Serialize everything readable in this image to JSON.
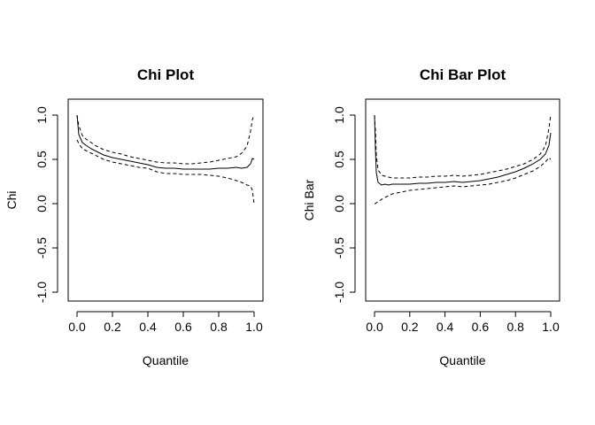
{
  "chart_data": [
    {
      "type": "line",
      "title": "Chi Plot",
      "xlabel": "Quantile",
      "ylabel": "Chi",
      "xlim": [
        0,
        1
      ],
      "ylim": [
        -1,
        1
      ],
      "xticks": [
        "0.0",
        "0.2",
        "0.4",
        "0.6",
        "0.8",
        "1.0"
      ],
      "yticks": [
        "-1.0",
        "-0.5",
        "0.0",
        "0.5",
        "1.0"
      ],
      "grid": false,
      "series": [
        {
          "style": "solid",
          "x": [
            0.0,
            0.01,
            0.03,
            0.05,
            0.08,
            0.1,
            0.15,
            0.2,
            0.25,
            0.3,
            0.35,
            0.4,
            0.45,
            0.5,
            0.55,
            0.6,
            0.65,
            0.7,
            0.75,
            0.8,
            0.85,
            0.9,
            0.93,
            0.96,
            0.98,
            0.99,
            1.0
          ],
          "values": [
            1.0,
            0.78,
            0.69,
            0.66,
            0.62,
            0.6,
            0.55,
            0.52,
            0.5,
            0.48,
            0.46,
            0.44,
            0.41,
            0.4,
            0.4,
            0.39,
            0.39,
            0.39,
            0.39,
            0.4,
            0.4,
            0.41,
            0.4,
            0.41,
            0.45,
            0.51,
            0.5
          ]
        },
        {
          "style": "dashed",
          "x": [
            0.0,
            0.01,
            0.03,
            0.05,
            0.08,
            0.1,
            0.15,
            0.2,
            0.25,
            0.3,
            0.35,
            0.4,
            0.45,
            0.5,
            0.55,
            0.6,
            0.65,
            0.7,
            0.75,
            0.8,
            0.85,
            0.9,
            0.93,
            0.96,
            0.98,
            0.99,
            1.0
          ],
          "values": [
            1.0,
            0.88,
            0.77,
            0.73,
            0.69,
            0.66,
            0.61,
            0.58,
            0.56,
            0.53,
            0.51,
            0.49,
            0.47,
            0.46,
            0.46,
            0.45,
            0.45,
            0.46,
            0.47,
            0.49,
            0.51,
            0.53,
            0.57,
            0.65,
            0.82,
            0.95,
            1.0
          ]
        },
        {
          "style": "dashed",
          "x": [
            0.0,
            0.01,
            0.03,
            0.05,
            0.08,
            0.1,
            0.15,
            0.2,
            0.25,
            0.3,
            0.35,
            0.4,
            0.45,
            0.5,
            0.55,
            0.6,
            0.65,
            0.7,
            0.75,
            0.8,
            0.85,
            0.9,
            0.93,
            0.96,
            0.98,
            0.99,
            1.0
          ],
          "values": [
            0.72,
            0.68,
            0.62,
            0.6,
            0.57,
            0.55,
            0.5,
            0.47,
            0.45,
            0.43,
            0.41,
            0.4,
            0.36,
            0.34,
            0.34,
            0.33,
            0.33,
            0.33,
            0.32,
            0.31,
            0.29,
            0.26,
            0.24,
            0.21,
            0.2,
            0.15,
            0.0
          ]
        }
      ]
    },
    {
      "type": "line",
      "title": "Chi Bar Plot",
      "xlabel": "Quantile",
      "ylabel": "Chi Bar",
      "xlim": [
        0,
        1
      ],
      "ylim": [
        -1,
        1
      ],
      "xticks": [
        "0.0",
        "0.2",
        "0.4",
        "0.6",
        "0.8",
        "1.0"
      ],
      "yticks": [
        "-1.0",
        "-0.5",
        "0.0",
        "0.5",
        "1.0"
      ],
      "grid": false,
      "series": [
        {
          "style": "solid",
          "x": [
            0.0,
            0.005,
            0.01,
            0.02,
            0.04,
            0.06,
            0.08,
            0.1,
            0.15,
            0.2,
            0.25,
            0.3,
            0.35,
            0.4,
            0.45,
            0.5,
            0.55,
            0.6,
            0.65,
            0.7,
            0.75,
            0.8,
            0.85,
            0.9,
            0.94,
            0.97,
            0.99,
            1.0
          ],
          "values": [
            1.0,
            0.62,
            0.35,
            0.24,
            0.21,
            0.22,
            0.21,
            0.22,
            0.22,
            0.22,
            0.23,
            0.23,
            0.24,
            0.24,
            0.25,
            0.24,
            0.25,
            0.26,
            0.28,
            0.3,
            0.33,
            0.36,
            0.4,
            0.45,
            0.5,
            0.56,
            0.66,
            0.8
          ]
        },
        {
          "style": "dashed",
          "x": [
            0.0,
            0.005,
            0.01,
            0.02,
            0.04,
            0.06,
            0.08,
            0.1,
            0.15,
            0.2,
            0.25,
            0.3,
            0.35,
            0.4,
            0.45,
            0.5,
            0.55,
            0.6,
            0.65,
            0.7,
            0.75,
            0.8,
            0.85,
            0.9,
            0.94,
            0.97,
            0.99,
            1.0
          ],
          "values": [
            1.0,
            0.82,
            0.55,
            0.38,
            0.32,
            0.31,
            0.3,
            0.29,
            0.29,
            0.29,
            0.3,
            0.3,
            0.31,
            0.31,
            0.32,
            0.31,
            0.32,
            0.33,
            0.35,
            0.37,
            0.39,
            0.42,
            0.45,
            0.5,
            0.56,
            0.65,
            0.85,
            1.0
          ]
        },
        {
          "style": "dashed",
          "x": [
            0.0,
            0.005,
            0.01,
            0.02,
            0.04,
            0.06,
            0.08,
            0.1,
            0.15,
            0.2,
            0.25,
            0.3,
            0.35,
            0.4,
            0.45,
            0.5,
            0.55,
            0.6,
            0.65,
            0.7,
            0.75,
            0.8,
            0.85,
            0.9,
            0.94,
            0.97,
            0.99,
            1.0
          ],
          "values": [
            0.0,
            0.0,
            0.01,
            0.02,
            0.05,
            0.07,
            0.09,
            0.11,
            0.13,
            0.15,
            0.16,
            0.17,
            0.18,
            0.19,
            0.2,
            0.19,
            0.2,
            0.21,
            0.22,
            0.24,
            0.26,
            0.29,
            0.33,
            0.37,
            0.42,
            0.47,
            0.52,
            0.5
          ]
        }
      ]
    }
  ]
}
